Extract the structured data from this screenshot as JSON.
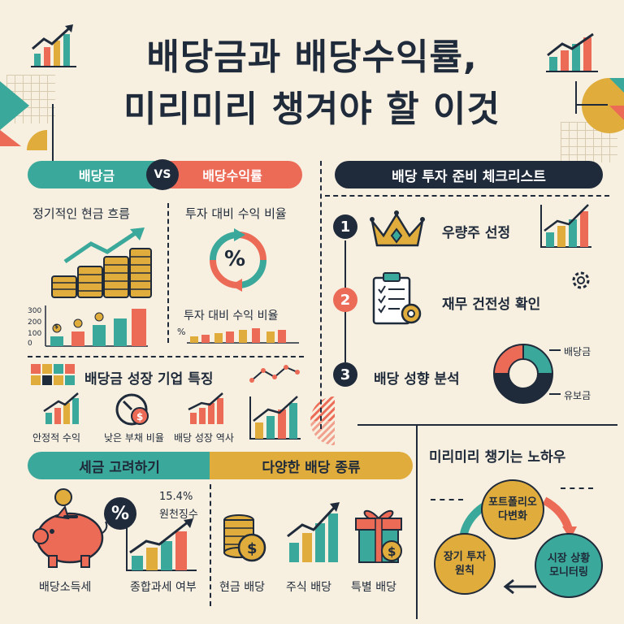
{
  "title": {
    "line1": "배당금과 배당수익률,",
    "line2": "미리미리 챙겨야 할 이것"
  },
  "compare": {
    "left_pill": "배당금",
    "vs": "VS",
    "right_pill": "배당수익률",
    "left_caption": "정기적인 현금 흐름",
    "right_caption": "투자 대비 수익 비율",
    "right_caption2": "투자 대비 수익 비율",
    "percent_symbol": "%",
    "axis_ticks": [
      "300",
      "200",
      "100",
      "0"
    ],
    "coin_symbol": "$",
    "mini_percent": "%"
  },
  "growth": {
    "title": "배당금 성장 기업 특징",
    "items": [
      "안정적 수익",
      "낮은 부채 비율",
      "배당 성장 역사"
    ]
  },
  "checklist": {
    "title": "배당 투자 준비 체크리스트",
    "steps": [
      {
        "num": "1",
        "label": "우량주 선정"
      },
      {
        "num": "2",
        "label": "재무 건전성 확인"
      },
      {
        "num": "3",
        "label": "배당 성향 분석"
      }
    ],
    "donut_labels": [
      "배당금",
      "유보금"
    ]
  },
  "tax": {
    "title": "세금 고려하기",
    "rate": "15.4%",
    "rate_label": "원천징수",
    "items": [
      "배당소득세",
      "종합과세 여부"
    ]
  },
  "types": {
    "title": "다양한 배당 종류",
    "items": [
      "현금 배당",
      "주식 배당",
      "특별 배당"
    ]
  },
  "knowhow": {
    "title": "미리미리 챙기는 노하우",
    "bubbles": [
      "포트폴리오\n다변화",
      "시장 상황\n모니터링",
      "장기 투자\n원칙"
    ]
  },
  "colors": {
    "teal": "#3aa89a",
    "coral": "#ec6b57",
    "mustard": "#e0ad3c",
    "navy": "#1f2a3a",
    "cream": "#f7efdf"
  }
}
